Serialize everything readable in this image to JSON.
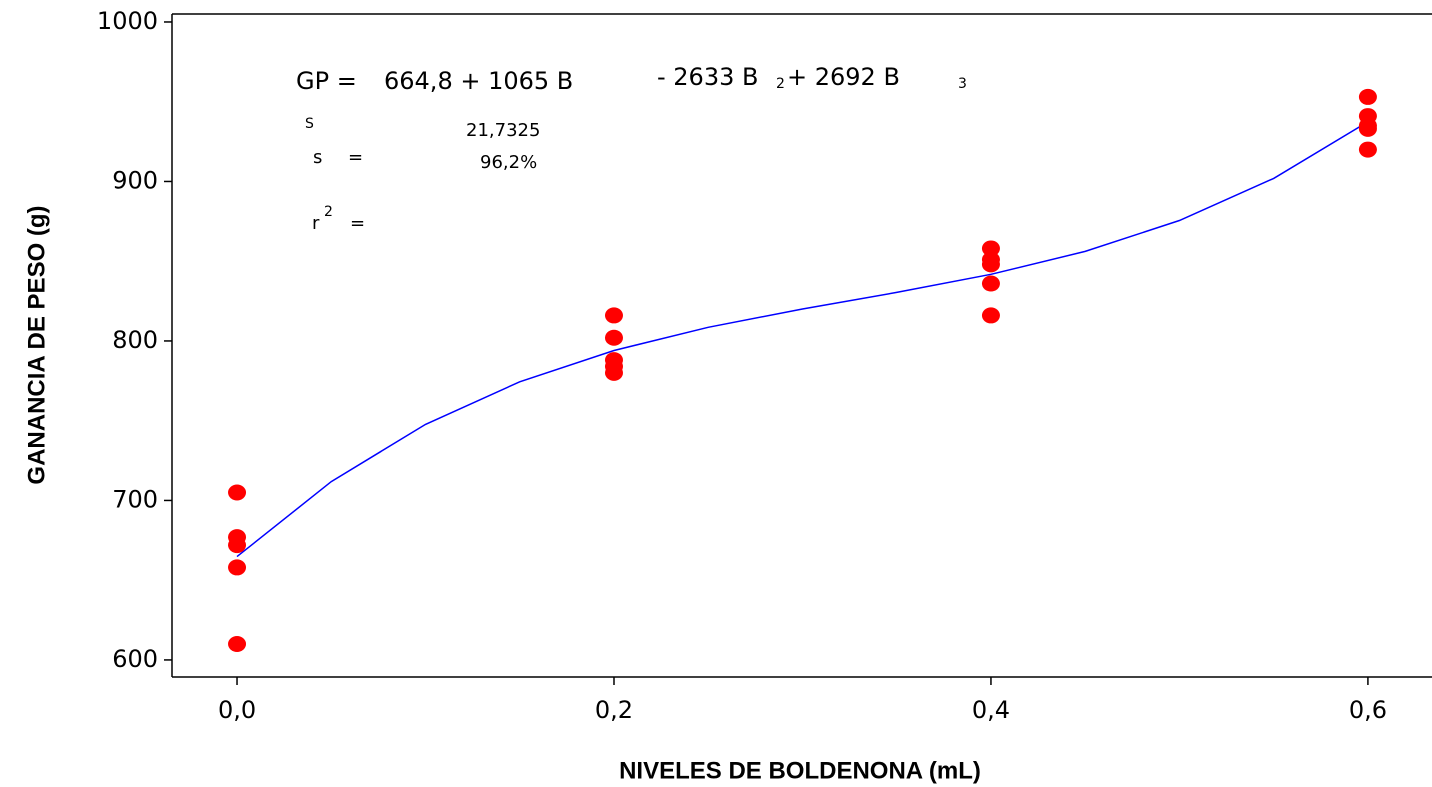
{
  "chart_data": {
    "type": "scatter",
    "x_label": "NIVELES DE BOLDENONA (mL)",
    "y_label": "GANANCIA DE PESO (g)",
    "xlim": [
      -0.0345,
      0.634
    ],
    "ylim": [
      589.3,
      1005
    ],
    "xticks": [
      {
        "value": 0,
        "label": "0,0"
      },
      {
        "value": 0.2,
        "label": "0,2"
      },
      {
        "value": 0.4,
        "label": "0,4"
      },
      {
        "value": 0.6,
        "label": "0,6"
      }
    ],
    "yticks": [
      600,
      700,
      800,
      900,
      1000
    ],
    "points": {
      "color": "#ff0000",
      "x": [
        0,
        0,
        0,
        0,
        0,
        0.2,
        0.2,
        0.2,
        0.2,
        0.2,
        0.4,
        0.4,
        0.4,
        0.4,
        0.4,
        0.6,
        0.6,
        0.6,
        0.6,
        0.6
      ],
      "values": [
        705,
        677,
        672,
        658,
        610,
        816,
        802,
        788,
        784,
        780,
        858,
        851,
        848,
        836,
        816,
        953,
        941,
        935,
        933,
        920
      ]
    },
    "fit_line": {
      "color": "#0000ff",
      "x": [
        0,
        0.05,
        0.1,
        0.15,
        0.2,
        0.25,
        0.3,
        0.35,
        0.4,
        0.45,
        0.5,
        0.55,
        0.6
      ],
      "values": [
        664.8,
        711.8,
        747.66,
        774.39,
        794.02,
        808.55,
        820.01,
        830.43,
        841.81,
        856.18,
        875.55,
        901.95,
        937.39
      ]
    },
    "annotations": [
      "GP =",
      "664,8 + 1065 B",
      "- 2633 B",
      "2",
      "+ 2692 B",
      "3",
      "S",
      "s",
      "=",
      "21,7325",
      "96,2%",
      "r",
      "2",
      "="
    ]
  }
}
